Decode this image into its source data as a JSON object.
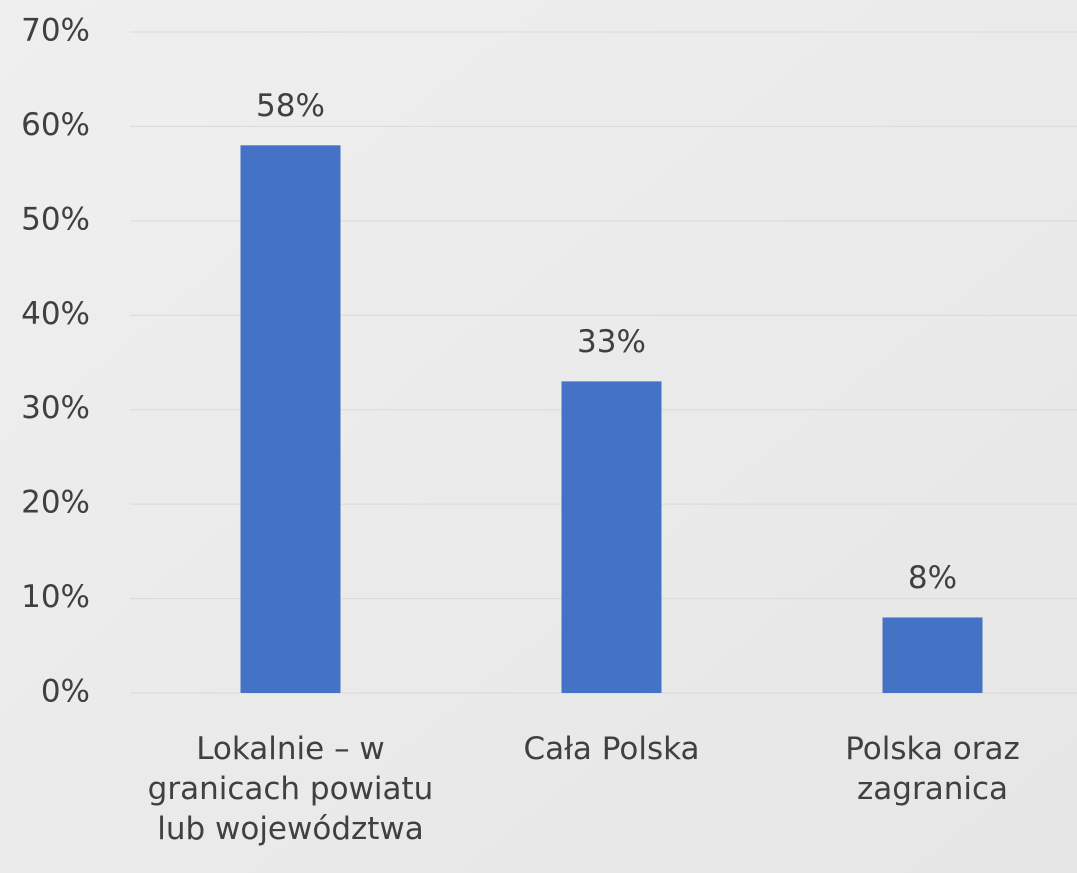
{
  "chart_data": {
    "type": "bar",
    "categories": [
      "Lokalnie – w granicach powiatu lub województwa",
      "Cała Polska",
      "Polska oraz zagranica"
    ],
    "values": [
      58,
      33,
      8
    ],
    "value_labels": [
      "58%",
      "33%",
      "8%"
    ],
    "color": "#4472c4",
    "ylim": [
      0,
      70
    ],
    "yticks": [
      {
        "value": 0,
        "label": "0%"
      },
      {
        "value": 10,
        "label": "10%"
      },
      {
        "value": 20,
        "label": "20%"
      },
      {
        "value": 30,
        "label": "30%"
      },
      {
        "value": 40,
        "label": "40%"
      },
      {
        "value": 50,
        "label": "50%"
      },
      {
        "value": 60,
        "label": "60%"
      },
      {
        "value": 70,
        "label": "70%"
      }
    ],
    "grid": true
  }
}
